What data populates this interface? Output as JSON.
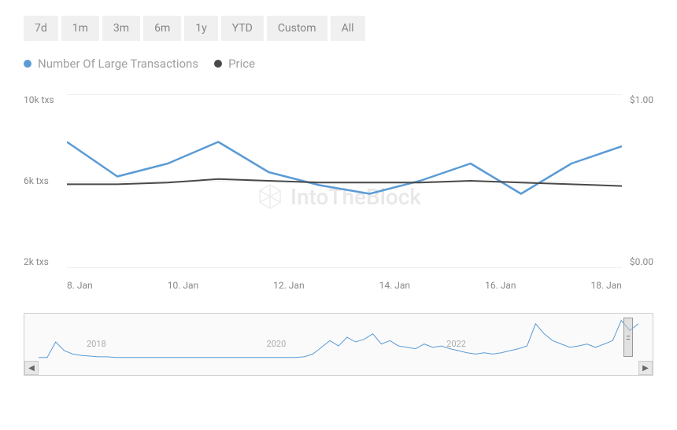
{
  "time_range": {
    "options": [
      "7d",
      "1m",
      "3m",
      "6m",
      "1y",
      "YTD",
      "Custom",
      "All"
    ]
  },
  "legend": {
    "series1": {
      "label": "Number Of Large Transactions",
      "color": "#5b9bd5"
    },
    "series2": {
      "label": "Price",
      "color": "#494949"
    }
  },
  "chart": {
    "type": "line",
    "background_color": "#ffffff",
    "grid_color": "#eeeeee",
    "axis_label_color": "#888888",
    "axis_fontsize": 12,
    "y_left": {
      "ticks": [
        "10k txs",
        "6k txs",
        "2k txs"
      ],
      "min": 2000,
      "max": 10000
    },
    "y_right": {
      "ticks": [
        "$1.00",
        "$0.00"
      ],
      "min": 0.0,
      "max": 1.0
    },
    "x": {
      "labels": [
        "8. Jan",
        "10. Jan",
        "12. Jan",
        "14. Jan",
        "16. Jan",
        "18. Jan"
      ]
    },
    "series1": {
      "color": "#5b9bd5",
      "line_width": 2.5,
      "values": [
        7800,
        6200,
        6800,
        7800,
        6400,
        5800,
        5400,
        6000,
        6800,
        5400,
        6800,
        7600
      ]
    },
    "series2": {
      "color": "#494949",
      "line_width": 2,
      "values": [
        0.48,
        0.48,
        0.49,
        0.51,
        0.5,
        0.49,
        0.49,
        0.49,
        0.5,
        0.49,
        0.48,
        0.47
      ]
    },
    "watermark": "IntoTheBlock"
  },
  "mini_chart": {
    "years": [
      "2018",
      "2020",
      "2022"
    ],
    "year_positions": [
      8,
      38,
      68
    ],
    "color": "#5b9bd5",
    "line_width": 1,
    "values": [
      5,
      5,
      28,
      15,
      10,
      8,
      7,
      6,
      6,
      5,
      5,
      5,
      5,
      5,
      5,
      5,
      5,
      5,
      5,
      5,
      5,
      5,
      5,
      5,
      5,
      5,
      5,
      5,
      5,
      5,
      5,
      6,
      10,
      20,
      30,
      22,
      35,
      28,
      32,
      40,
      25,
      30,
      22,
      20,
      18,
      25,
      20,
      22,
      18,
      15,
      12,
      10,
      12,
      10,
      12,
      15,
      18,
      22,
      55,
      40,
      30,
      25,
      20,
      22,
      25,
      20,
      25,
      30,
      60,
      45,
      55
    ],
    "max": 70
  }
}
